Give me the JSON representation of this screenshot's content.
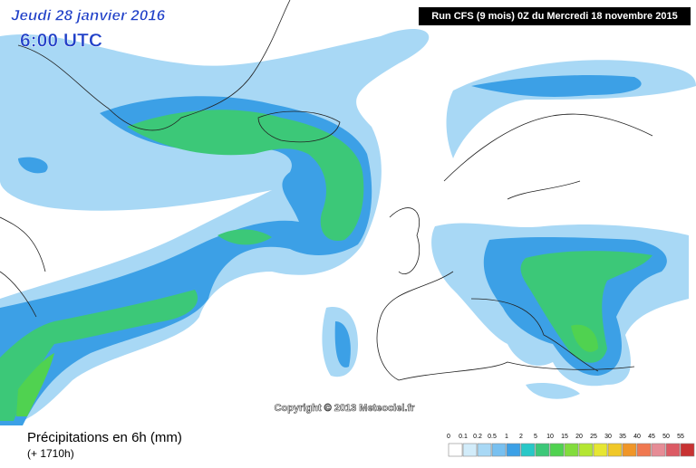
{
  "header": {
    "date": "Jeudi 28 janvier 2016",
    "time": "6:00 UTC",
    "run": "Run CFS (9 mois) 0Z du Mercredi 18 novembre 2015"
  },
  "map": {
    "copyright": "Copyright © 2013 Meteociel.fr"
  },
  "footer": {
    "title": "Précipitations en 6h (mm)",
    "lead": "(+ 1710h)"
  },
  "legend": {
    "labels": [
      0,
      0.1,
      0.2,
      0.5,
      1,
      2,
      5,
      10,
      15,
      20,
      25,
      30,
      35,
      40,
      45,
      50,
      55
    ],
    "colors": [
      "#ffffff",
      "#d2ecfa",
      "#a8d8f5",
      "#78c0f0",
      "#3ca0e6",
      "#28c8c8",
      "#3cc878",
      "#50d250",
      "#82dc3c",
      "#b4e632",
      "#e6e632",
      "#f0c828",
      "#f09628",
      "#f07850",
      "#e68c96",
      "#dc5a64",
      "#c83232"
    ]
  }
}
